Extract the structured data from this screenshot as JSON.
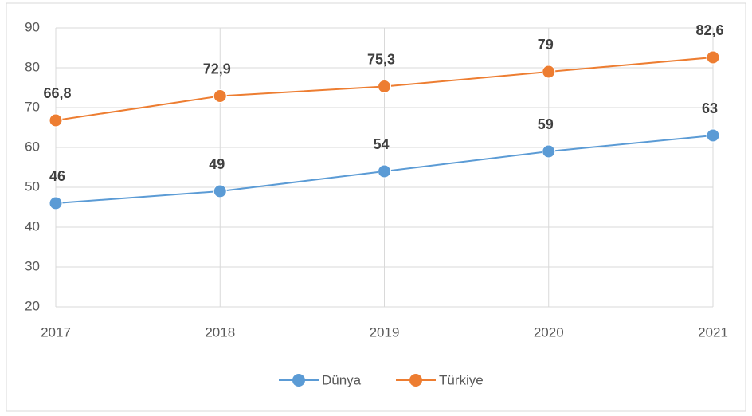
{
  "chart_data": {
    "type": "line",
    "categories": [
      "2017",
      "2018",
      "2019",
      "2020",
      "2021"
    ],
    "series": [
      {
        "name": "Dünya",
        "color": "#5b9bd5",
        "values": [
          46,
          49,
          54,
          59,
          63
        ]
      },
      {
        "name": "Türkiye",
        "color": "#ed7d31",
        "values": [
          66.8,
          72.9,
          75.3,
          79,
          82.6
        ],
        "value_labels": [
          "66,8",
          "72,9",
          "75,3",
          "79",
          "82,6"
        ]
      }
    ],
    "ylim": [
      20,
      90
    ],
    "yticks": [
      20,
      30,
      40,
      50,
      60,
      70,
      80,
      90
    ],
    "grid": true,
    "legend": "bottom"
  }
}
